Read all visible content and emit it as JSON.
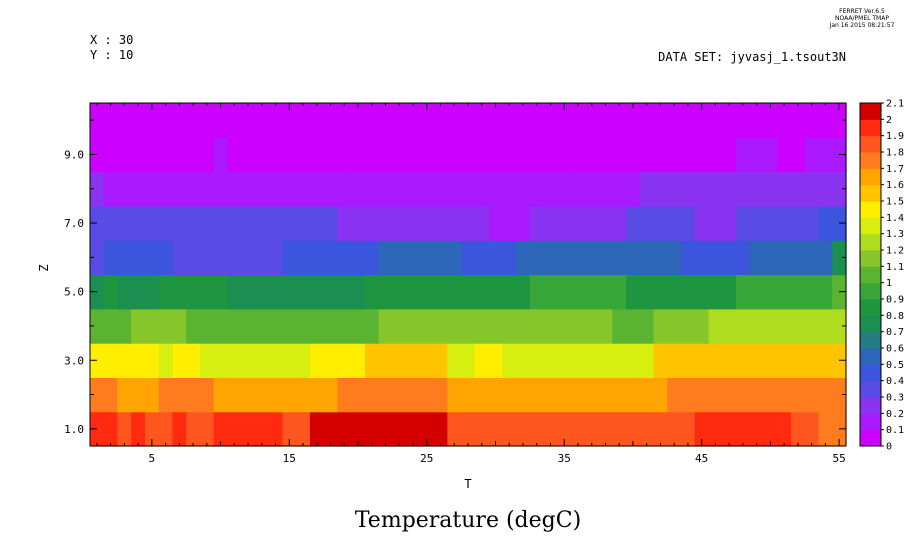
{
  "header": {
    "ferret_lines": [
      "FERRET  Ver.6.5",
      "NOAA/PMEL TMAP",
      "Jan 16 2015 08:21:57"
    ],
    "x_info": "X : 30",
    "y_info": "Y : 10",
    "dataset": "DATA SET: jyvasj_1.tsout3N"
  },
  "chart_data": {
    "type": "heatmap",
    "title": "Temperature (degC)",
    "xlabel": "T",
    "ylabel": "Z",
    "xlim": [
      0.5,
      55.5
    ],
    "ylim": [
      0.5,
      10.5
    ],
    "x_ticks": [
      5,
      15,
      25,
      35,
      45,
      55
    ],
    "x_tick_labels": [
      "5",
      "15",
      "25",
      "35",
      "45",
      "55"
    ],
    "y_ticks": [
      1,
      3,
      5,
      7,
      9
    ],
    "y_tick_labels": [
      "1.0",
      "3.0",
      "5.0",
      "7.0",
      "9.0"
    ],
    "colorbar": {
      "levels": [
        0,
        0.1,
        0.2,
        0.3,
        0.4,
        0.5,
        0.6,
        0.7,
        0.8,
        0.9,
        1,
        1.1,
        1.2,
        1.3,
        1.4,
        1.5,
        1.6,
        1.7,
        1.8,
        1.9,
        2,
        2.1
      ],
      "level_labels": [
        "0",
        "0.1",
        "0.2",
        "0.3",
        "0.4",
        "0.5",
        "0.6",
        "0.7",
        "0.8",
        "0.9",
        "1",
        "1.1",
        "1.2",
        "1.3",
        "1.4",
        "1.5",
        "1.6",
        "1.7",
        "1.8",
        "1.9",
        "2",
        "2.1"
      ],
      "colors": [
        "#cc00ff",
        "#aa19ff",
        "#8a33f0",
        "#5a4ae6",
        "#3b55dc",
        "#2e66b8",
        "#257d84",
        "#1a8f50",
        "#1e9640",
        "#38a638",
        "#5bb431",
        "#86c62a",
        "#aedc1e",
        "#d6ee10",
        "#ffee00",
        "#ffc400",
        "#ffa400",
        "#ff7c1e",
        "#ff551e",
        "#ff2a10",
        "#d40000",
        "#a00000"
      ]
    },
    "rows": [
      {
        "z": 1,
        "segments": [
          [
            1,
            1.95
          ],
          [
            3,
            1.85
          ],
          [
            4,
            1.95
          ],
          [
            5,
            1.85
          ],
          [
            7,
            1.95
          ],
          [
            8,
            1.85
          ],
          [
            10,
            1.95
          ],
          [
            11,
            1.9
          ],
          [
            14,
            1.95
          ],
          [
            15,
            1.85
          ],
          [
            17,
            2.0
          ],
          [
            27,
            1.85
          ],
          [
            45,
            1.95
          ],
          [
            52,
            1.85
          ],
          [
            54,
            1.75
          ]
        ]
      },
      {
        "z": 2,
        "segments": [
          [
            1,
            1.75
          ],
          [
            3,
            1.65
          ],
          [
            6,
            1.75
          ],
          [
            10,
            1.65
          ],
          [
            19,
            1.75
          ],
          [
            27,
            1.65
          ],
          [
            43,
            1.75
          ]
        ]
      },
      {
        "z": 3,
        "segments": [
          [
            1,
            1.45
          ],
          [
            6,
            1.35
          ],
          [
            7,
            1.45
          ],
          [
            9,
            1.35
          ],
          [
            17,
            1.45
          ],
          [
            21,
            1.55
          ],
          [
            27,
            1.35
          ],
          [
            29,
            1.45
          ],
          [
            31,
            1.35
          ],
          [
            42,
            1.55
          ]
        ]
      },
      {
        "z": 4,
        "segments": [
          [
            1,
            1.05
          ],
          [
            4,
            1.15
          ],
          [
            8,
            1.05
          ],
          [
            22,
            1.15
          ],
          [
            39,
            1.05
          ],
          [
            42,
            1.15
          ],
          [
            46,
            1.25
          ]
        ]
      },
      {
        "z": 5,
        "segments": [
          [
            1,
            0.75
          ],
          [
            2,
            0.85
          ],
          [
            3,
            0.75
          ],
          [
            6,
            0.85
          ],
          [
            11,
            0.75
          ],
          [
            21,
            0.85
          ],
          [
            33,
            0.95
          ],
          [
            40,
            0.85
          ],
          [
            48,
            0.95
          ],
          [
            55,
            1.05
          ]
        ]
      },
      {
        "z": 6,
        "segments": [
          [
            1,
            0.35
          ],
          [
            2,
            0.45
          ],
          [
            7,
            0.35
          ],
          [
            15,
            0.45
          ],
          [
            22,
            0.55
          ],
          [
            28,
            0.45
          ],
          [
            32,
            0.55
          ],
          [
            44,
            0.45
          ],
          [
            49,
            0.55
          ],
          [
            55,
            0.75
          ]
        ]
      },
      {
        "z": 7,
        "segments": [
          [
            1,
            0.35
          ],
          [
            19,
            0.25
          ],
          [
            30,
            0.15
          ],
          [
            33,
            0.25
          ],
          [
            40,
            0.35
          ],
          [
            45,
            0.25
          ],
          [
            48,
            0.35
          ],
          [
            54,
            0.45
          ]
        ]
      },
      {
        "z": 8,
        "segments": [
          [
            1,
            0.2
          ],
          [
            2,
            0.15
          ],
          [
            20,
            0.1
          ],
          [
            36,
            0.15
          ],
          [
            41,
            0.2
          ],
          [
            53,
            0.25
          ]
        ]
      },
      {
        "z": 9,
        "segments": [
          [
            1,
            0.05
          ],
          [
            10,
            0.1
          ],
          [
            11,
            0.05
          ],
          [
            48,
            0.1
          ],
          [
            51,
            0.05
          ],
          [
            53,
            0.1
          ]
        ]
      },
      {
        "z": 10,
        "segments": [
          [
            1,
            0.05
          ]
        ]
      }
    ]
  }
}
